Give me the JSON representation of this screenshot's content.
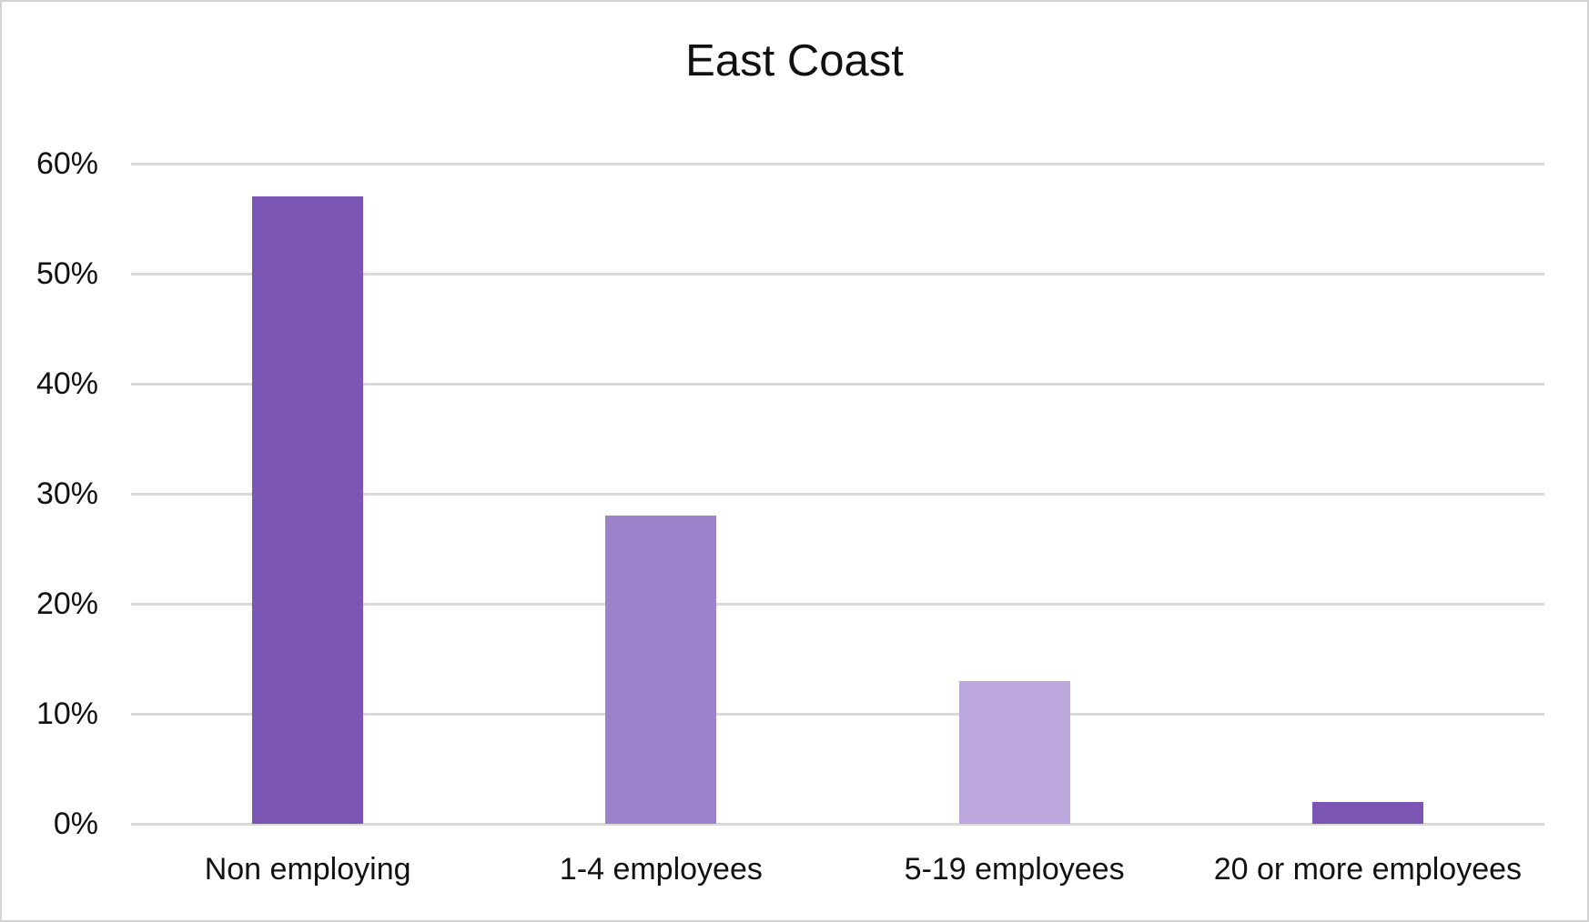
{
  "chart_data": {
    "type": "bar",
    "title": "East Coast",
    "categories": [
      "Non employing",
      "1-4 employees",
      "5-19 employees",
      "20 or more employees"
    ],
    "values": [
      57,
      28,
      13,
      2
    ],
    "value_unit": "%",
    "bar_colors": [
      "#7B55B4",
      "#9C82CB",
      "#BBA7DC",
      "#7B55B4"
    ],
    "xlabel": "",
    "ylabel": "",
    "ylim": [
      0,
      60
    ],
    "ytick_step": 10,
    "ytick_labels": [
      "0%",
      "10%",
      "20%",
      "30%",
      "40%",
      "50%",
      "60%"
    ],
    "grid": "horizontal",
    "gridline_color": "#d9d9d9",
    "legend_position": "none",
    "background_color": "#ffffff",
    "border_color": "#d3d3d3",
    "text_color": "#111111"
  }
}
